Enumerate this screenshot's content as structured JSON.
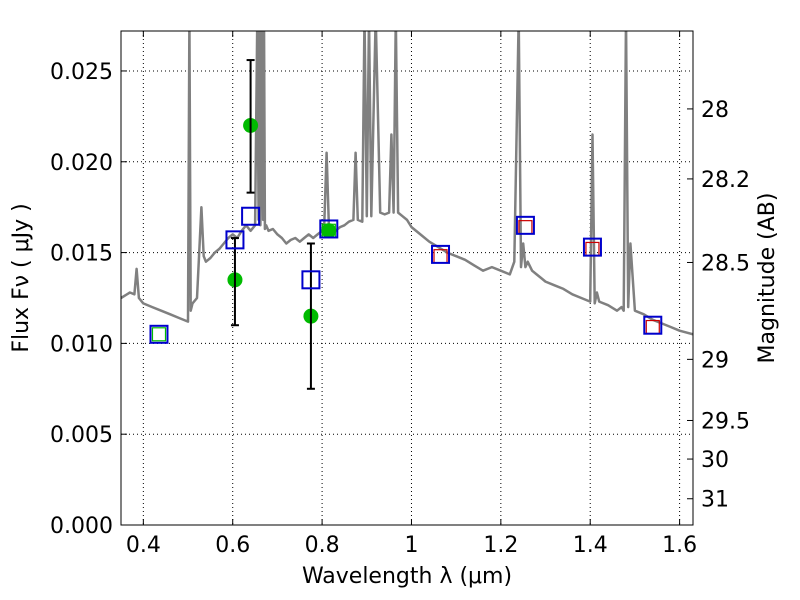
{
  "chart_data": {
    "type": "scatter",
    "xlabel": "Wavelength  λ (μm)",
    "ylabel": "Flux  Fν  ( μJy )",
    "y2label": "Magnitude (AB)",
    "xlim": [
      0.35,
      1.63
    ],
    "ylim": [
      0.0,
      0.0272
    ],
    "grid": true,
    "x_ticks": [
      "0.4",
      "0.6",
      "0.8",
      "1",
      "1.2",
      "1.4",
      "1.6"
    ],
    "x_tick_values": [
      0.4,
      0.6,
      0.8,
      1.0,
      1.2,
      1.4,
      1.6
    ],
    "y_ticks": [
      "0.000",
      "0.005",
      "0.010",
      "0.015",
      "0.020",
      "0.025"
    ],
    "y_tick_values": [
      0.0,
      0.005,
      0.01,
      0.015,
      0.02,
      0.025
    ],
    "y2_ticks": [
      "28",
      "28.2",
      "28.5",
      "29",
      "29.5",
      "30",
      "31"
    ],
    "y2_tick_values": [
      28,
      28.2,
      28.5,
      29,
      29.5,
      30,
      31
    ],
    "series": [
      {
        "kind": "line",
        "color": "#808080",
        "x": [
          0.35,
          0.37,
          0.38,
          0.385,
          0.39,
          0.4,
          0.42,
          0.44,
          0.46,
          0.48,
          0.5,
          0.503,
          0.506,
          0.51,
          0.52,
          0.53,
          0.535,
          0.54,
          0.55,
          0.56,
          0.57,
          0.58,
          0.59,
          0.6,
          0.61,
          0.62,
          0.63,
          0.64,
          0.65,
          0.655,
          0.658,
          0.66,
          0.662,
          0.665,
          0.668,
          0.67,
          0.672,
          0.675,
          0.68,
          0.69,
          0.7,
          0.71,
          0.72,
          0.73,
          0.74,
          0.75,
          0.76,
          0.77,
          0.78,
          0.79,
          0.8,
          0.805,
          0.81,
          0.815,
          0.82,
          0.83,
          0.84,
          0.85,
          0.86,
          0.87,
          0.875,
          0.88,
          0.89,
          0.895,
          0.9,
          0.905,
          0.91,
          0.92,
          0.93,
          0.94,
          0.95,
          0.955,
          0.96,
          0.965,
          0.97,
          0.98,
          0.99,
          1.0,
          1.02,
          1.04,
          1.06,
          1.08,
          1.1,
          1.12,
          1.14,
          1.16,
          1.18,
          1.2,
          1.22,
          1.23,
          1.24,
          1.245,
          1.25,
          1.255,
          1.26,
          1.27,
          1.28,
          1.29,
          1.3,
          1.32,
          1.34,
          1.36,
          1.38,
          1.4,
          1.405,
          1.41,
          1.415,
          1.42,
          1.44,
          1.46,
          1.47,
          1.475,
          1.48,
          1.485,
          1.49,
          1.5,
          1.52,
          1.54,
          1.56,
          1.58,
          1.6,
          1.63
        ],
        "y": [
          0.0125,
          0.0128,
          0.0127,
          0.0141,
          0.0125,
          0.0122,
          0.012,
          0.0118,
          0.0116,
          0.0114,
          0.0112,
          0.028,
          0.0118,
          0.0122,
          0.0125,
          0.0175,
          0.0148,
          0.0145,
          0.0147,
          0.015,
          0.0152,
          0.0155,
          0.0158,
          0.016,
          0.0158,
          0.0162,
          0.0165,
          0.0162,
          0.0165,
          0.028,
          0.0168,
          0.028,
          0.0165,
          0.028,
          0.0168,
          0.028,
          0.0163,
          0.0165,
          0.0162,
          0.0163,
          0.016,
          0.0158,
          0.0155,
          0.0157,
          0.0158,
          0.0156,
          0.0158,
          0.016,
          0.0158,
          0.016,
          0.0162,
          0.0166,
          0.0205,
          0.0166,
          0.0163,
          0.0162,
          0.0164,
          0.0165,
          0.0167,
          0.0168,
          0.0205,
          0.0168,
          0.0167,
          0.028,
          0.017,
          0.028,
          0.017,
          0.028,
          0.0172,
          0.0171,
          0.0172,
          0.0215,
          0.0172,
          0.028,
          0.0172,
          0.017,
          0.0168,
          0.0164,
          0.016,
          0.0156,
          0.0153,
          0.015,
          0.0148,
          0.0146,
          0.0143,
          0.014,
          0.0142,
          0.014,
          0.0138,
          0.0145,
          0.028,
          0.0142,
          0.0155,
          0.0142,
          0.0145,
          0.014,
          0.0138,
          0.0136,
          0.0134,
          0.0132,
          0.013,
          0.0127,
          0.0125,
          0.0123,
          0.0215,
          0.0122,
          0.0128,
          0.0123,
          0.0121,
          0.0118,
          0.012,
          0.0118,
          0.028,
          0.012,
          0.0155,
          0.0118,
          0.0116,
          0.0113,
          0.0111,
          0.0109,
          0.0107,
          0.0105
        ]
      },
      {
        "kind": "points",
        "marker": "circle",
        "color": "#00bb00",
        "x": [
          0.605,
          0.64,
          0.775,
          0.815
        ],
        "y": [
          0.0135,
          0.022,
          0.0115,
          0.0162
        ]
      },
      {
        "kind": "errorbars",
        "color": "#000000",
        "x": [
          0.605,
          0.64,
          0.775
        ],
        "y_low": [
          0.011,
          0.0183,
          0.0075
        ],
        "y_high": [
          0.0158,
          0.0256,
          0.0155
        ]
      },
      {
        "kind": "points",
        "marker": "square",
        "color": "#00bb00",
        "x": [
          0.435,
          0.815
        ],
        "y": [
          0.0105,
          0.0162
        ]
      },
      {
        "kind": "points",
        "marker": "square",
        "color": "#cc0000",
        "x": [
          1.065,
          1.255,
          1.405,
          1.54
        ],
        "y": [
          0.0148,
          0.0164,
          0.0152,
          0.0109
        ]
      },
      {
        "kind": "points",
        "marker": "square",
        "color": "#0000cc",
        "x": [
          0.435,
          0.605,
          0.64,
          0.775,
          0.815,
          1.065,
          1.255,
          1.405,
          1.54
        ],
        "y": [
          0.0105,
          0.0157,
          0.017,
          0.0135,
          0.0163,
          0.0149,
          0.0165,
          0.0153,
          0.011
        ]
      }
    ]
  }
}
